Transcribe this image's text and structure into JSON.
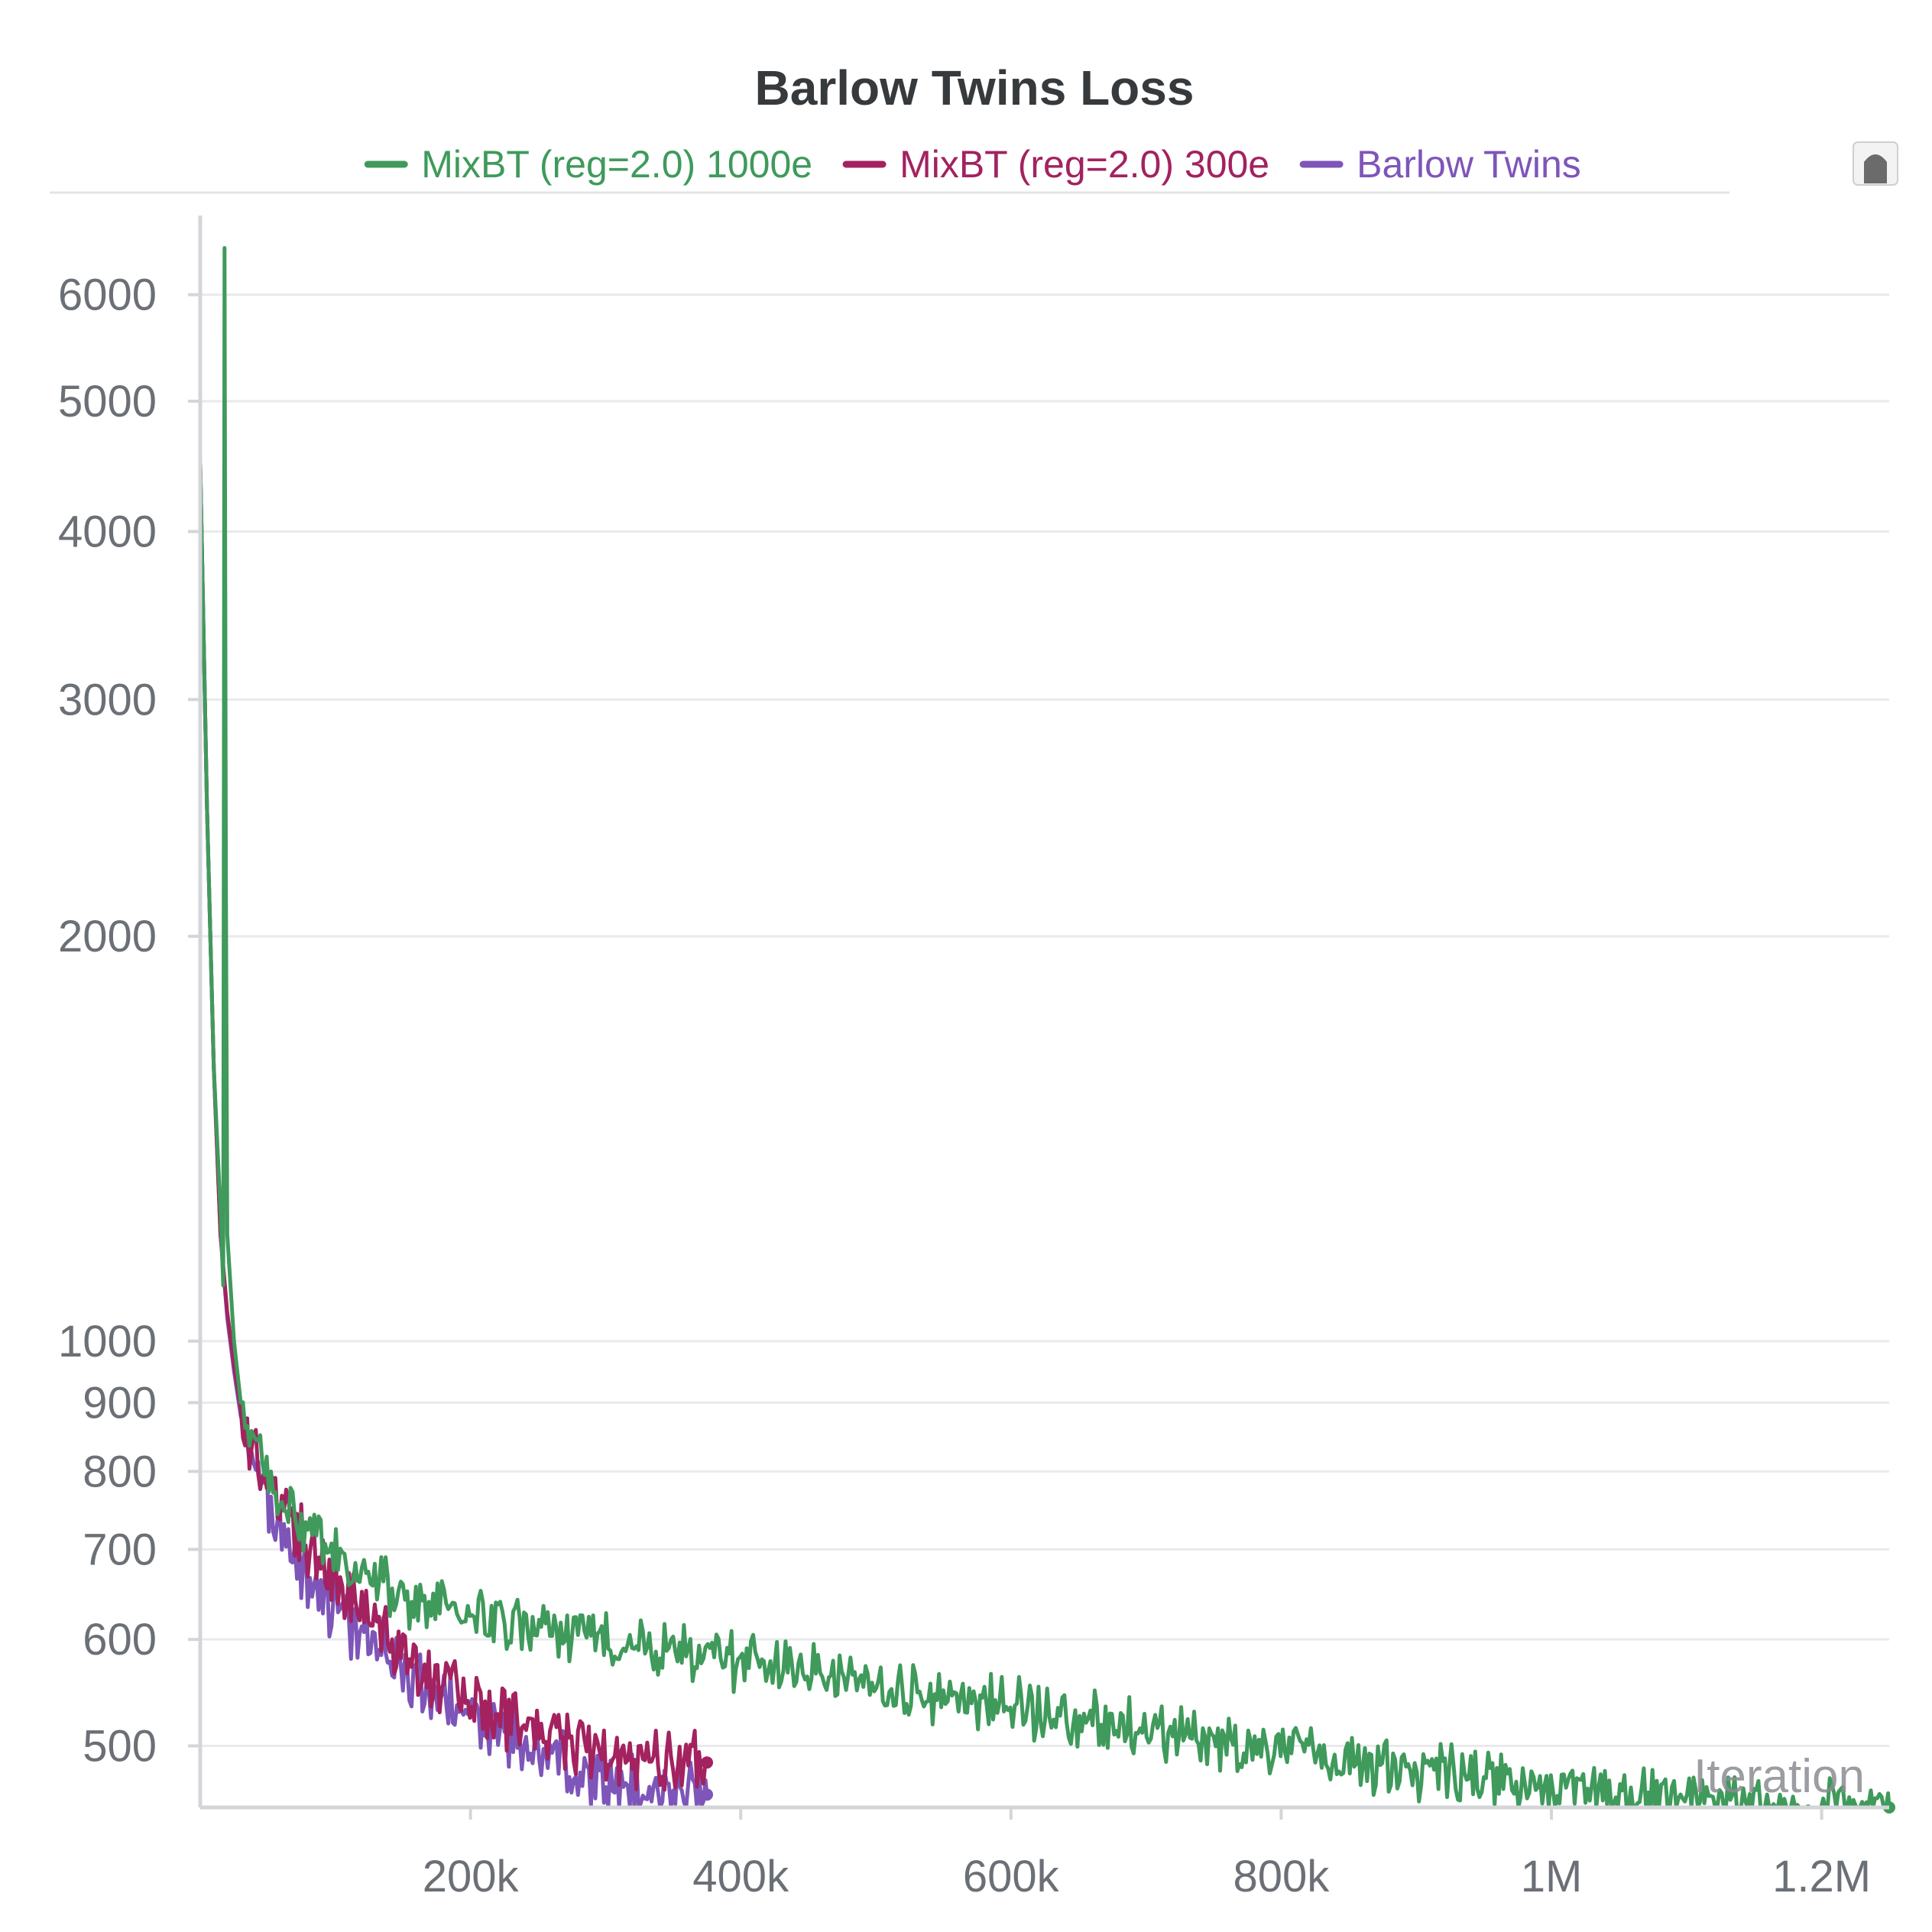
{
  "panel": {
    "colors": {
      "grid": "#e9eaec",
      "axis": "#d3d5d8",
      "tick_text": "#6b6f76",
      "title": "#363a3d",
      "legend_divider": "#e3e4e6"
    },
    "panel_icon": "bookmark-tab-icon"
  },
  "chart_data": {
    "type": "line",
    "title": "Barlow Twins Loss",
    "xlabel": "Iteration",
    "ylabel": "",
    "y_scale": "log",
    "xlim": [
      0,
      1250000
    ],
    "ylim": [
      450,
      6800
    ],
    "legend_position": "top-center",
    "grid": true,
    "x_ticks": [
      200000,
      400000,
      600000,
      800000,
      1000000,
      1200000
    ],
    "x_tick_labels": [
      "200k",
      "400k",
      "600k",
      "800k",
      "1M",
      "1.2M"
    ],
    "y_ticks": [
      500,
      600,
      700,
      800,
      900,
      1000,
      2000,
      3000,
      4000,
      5000,
      6000
    ],
    "y_tick_labels": [
      "500",
      "600",
      "700",
      "800",
      "900",
      "1000",
      "2000",
      "3000",
      "4000",
      "5000",
      "6000"
    ],
    "series": [
      {
        "name": "MixBT (reg=2.0) 1000e",
        "color": "#3f9a5b",
        "x": [
          0,
          5000,
          10000,
          15000,
          17000,
          18000,
          19000,
          20000,
          25000,
          30000,
          40000,
          50000,
          60000,
          80000,
          100000,
          130000,
          160000,
          200000,
          250000,
          300000,
          350000,
          400000,
          450000,
          500000,
          550000,
          600000,
          650000,
          700000,
          750000,
          800000,
          850000,
          900000,
          950000,
          1000000,
          1050000,
          1100000,
          1150000,
          1200000,
          1250000
        ],
        "y": [
          4500,
          2500,
          1600,
          1250,
          1100,
          6500,
          2200,
          1200,
          1000,
          900,
          830,
          790,
          760,
          720,
          690,
          660,
          640,
          625,
          610,
          600,
          590,
          580,
          570,
          555,
          545,
          535,
          525,
          515,
          505,
          495,
          487,
          480,
          472,
          465,
          460,
          455,
          452,
          450,
          448
        ],
        "noise": 0.04
      },
      {
        "name": "MixBT (reg=2.0) 300e",
        "color": "#a3225f",
        "x": [
          0,
          5000,
          10000,
          15000,
          20000,
          25000,
          30000,
          40000,
          50000,
          60000,
          80000,
          100000,
          130000,
          160000,
          200000,
          250000,
          300000,
          340000,
          375000
        ],
        "y": [
          4500,
          2500,
          1600,
          1200,
          1050,
          960,
          890,
          830,
          780,
          750,
          700,
          660,
          620,
          580,
          545,
          515,
          495,
          488,
          486
        ],
        "noise": 0.045
      },
      {
        "name": "Barlow Twins",
        "color": "#7e55b9",
        "x": [
          0,
          5000,
          10000,
          15000,
          20000,
          25000,
          30000,
          40000,
          50000,
          60000,
          80000,
          100000,
          130000,
          160000,
          200000,
          250000,
          300000,
          340000,
          375000
        ],
        "y": [
          4500,
          2500,
          1600,
          1200,
          1040,
          950,
          880,
          810,
          760,
          720,
          670,
          635,
          595,
          560,
          525,
          495,
          470,
          462,
          460
        ],
        "noise": 0.045
      }
    ]
  }
}
